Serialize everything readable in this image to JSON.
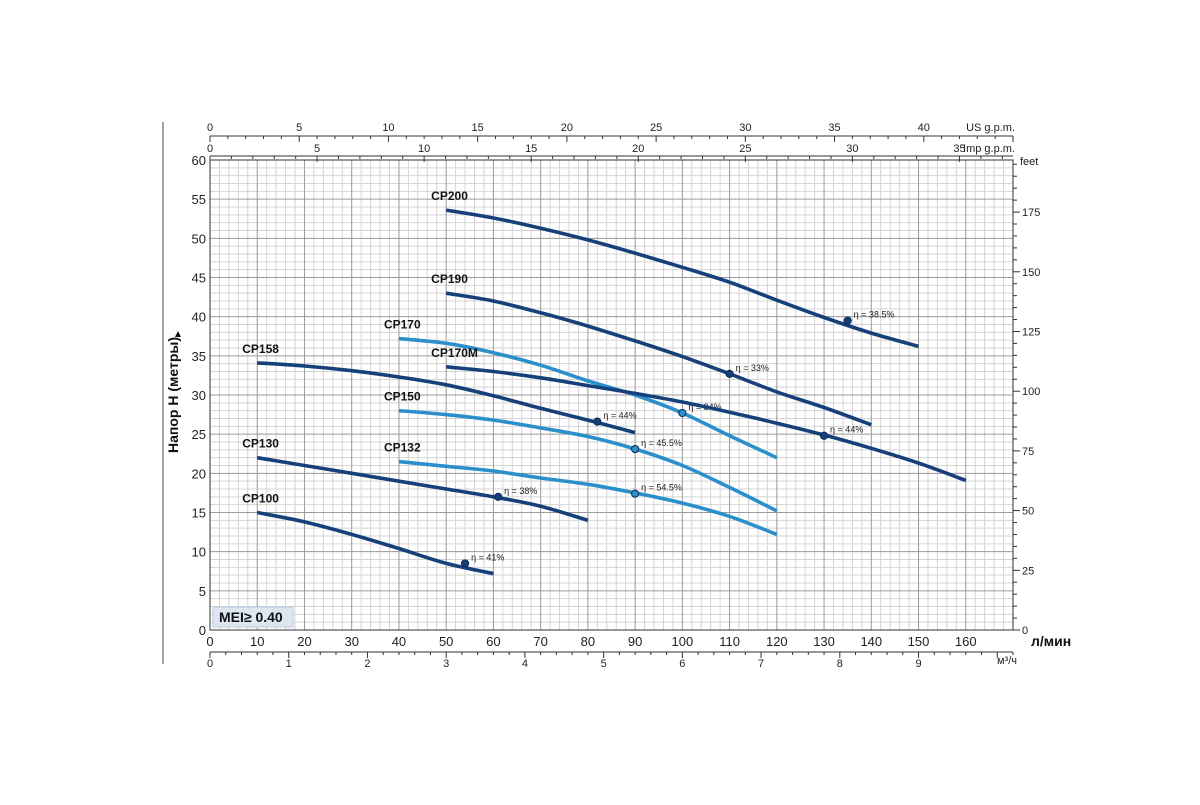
{
  "chart_data": {
    "type": "line",
    "ylabel": "Напор H (метры)",
    "xlabel": "л/мин",
    "xlim": [
      0,
      170
    ],
    "ylim": [
      0,
      60
    ],
    "grid": true,
    "x_ticks": [
      0,
      10,
      20,
      30,
      40,
      50,
      60,
      70,
      80,
      90,
      100,
      110,
      120,
      130,
      140,
      150,
      160
    ],
    "y_ticks": [
      0,
      5,
      10,
      15,
      20,
      25,
      30,
      35,
      40,
      45,
      50,
      55,
      60
    ],
    "secondary_axes": {
      "us_gpm": {
        "label": "US g.p.m.",
        "max": 45,
        "ticks": [
          0,
          5,
          10,
          15,
          20,
          25,
          30,
          35,
          40
        ]
      },
      "imp_gpm": {
        "label": "Imp g.p.m.",
        "max": 37.5,
        "ticks": [
          0,
          5,
          10,
          15,
          20,
          25,
          30,
          35
        ]
      },
      "m3h": {
        "label": "м³/ч",
        "max": 10.2,
        "ticks": [
          0,
          1,
          2,
          3,
          4,
          5,
          6,
          7,
          8,
          9
        ]
      },
      "feet": {
        "label": "feet",
        "max": 196.8,
        "ticks": [
          0,
          25,
          50,
          75,
          100,
          125,
          150,
          175
        ]
      }
    },
    "badge": "MEI≥ 0.40",
    "series": [
      {
        "name": "CP100",
        "color": "#16407a",
        "x": [
          10,
          20,
          30,
          40,
          50,
          60
        ],
        "y": [
          15,
          13.8,
          12.2,
          10.4,
          8.5,
          7.2
        ],
        "eta": {
          "label": "η = 41%",
          "x": 54,
          "y": 8.5
        }
      },
      {
        "name": "CP130",
        "color": "#16407a",
        "x": [
          10,
          20,
          30,
          40,
          50,
          60,
          70,
          80
        ],
        "y": [
          22,
          21,
          20,
          19,
          18,
          17,
          15.8,
          14
        ],
        "eta": {
          "label": "η = 38%",
          "x": 61,
          "y": 17
        }
      },
      {
        "name": "CP132",
        "color": "#2b8fcb",
        "x": [
          40,
          50,
          60,
          70,
          80,
          90,
          100,
          110,
          120
        ],
        "y": [
          21.5,
          20.9,
          20.3,
          19.4,
          18.6,
          17.5,
          16.2,
          14.5,
          12.2
        ],
        "eta": {
          "label": "η = 54.5%",
          "x": 90,
          "y": 17.4
        }
      },
      {
        "name": "CP150",
        "color": "#2b8fcb",
        "x": [
          40,
          50,
          60,
          70,
          80,
          90,
          100,
          110,
          120
        ],
        "y": [
          28,
          27.5,
          26.8,
          25.8,
          24.7,
          23.1,
          21,
          18.2,
          15.2
        ],
        "eta": {
          "label": "η = 45.5%",
          "x": 90,
          "y": 23.1
        }
      },
      {
        "name": "CP158",
        "color": "#16407a",
        "x": [
          10,
          20,
          30,
          40,
          50,
          60,
          70,
          80,
          90
        ],
        "y": [
          34.1,
          33.7,
          33.1,
          32.3,
          31.3,
          29.9,
          28.3,
          26.8,
          25.2
        ],
        "eta": {
          "label": "η = 44%",
          "x": 82,
          "y": 26.6
        }
      },
      {
        "name": "CP170",
        "color": "#2b8fcb",
        "x": [
          40,
          50,
          60,
          70,
          80,
          90,
          100,
          110,
          120
        ],
        "y": [
          37.2,
          36.6,
          35.4,
          33.8,
          31.8,
          30,
          27.7,
          24.8,
          22
        ],
        "eta": {
          "label": "η = 34%",
          "x": 100,
          "y": 27.7
        }
      },
      {
        "name": "CP170M",
        "color": "#16407a",
        "x": [
          50,
          60,
          70,
          80,
          90,
          100,
          110,
          120,
          130,
          140,
          150,
          160
        ],
        "y": [
          33.6,
          33,
          32.2,
          31.2,
          30.2,
          29.1,
          27.8,
          26.4,
          24.9,
          23.2,
          21.3,
          19.1
        ],
        "eta": {
          "label": "η = 44%",
          "x": 130,
          "y": 24.8
        }
      },
      {
        "name": "CP190",
        "color": "#16407a",
        "x": [
          50,
          60,
          70,
          80,
          90,
          100,
          110,
          120,
          130,
          140
        ],
        "y": [
          43,
          42,
          40.5,
          38.8,
          36.9,
          34.9,
          32.7,
          30.4,
          28.4,
          26.2
        ],
        "eta": {
          "label": "η = 33%",
          "x": 110,
          "y": 32.7
        }
      },
      {
        "name": "CP200",
        "color": "#16407a",
        "x": [
          50,
          60,
          70,
          80,
          90,
          100,
          110,
          120,
          130,
          140,
          150
        ],
        "y": [
          53.6,
          52.6,
          51.3,
          49.8,
          48.1,
          46.3,
          44.4,
          42.1,
          39.9,
          37.9,
          36.2
        ],
        "eta": {
          "label": "η = 38.5%",
          "x": 135,
          "y": 39.5
        }
      }
    ]
  }
}
